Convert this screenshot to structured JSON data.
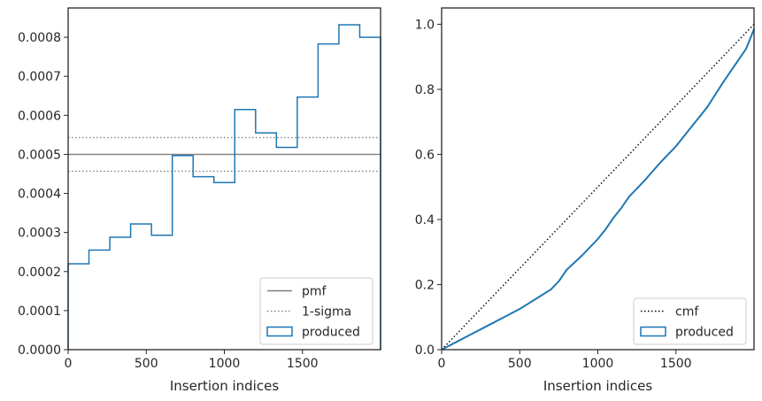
{
  "chart_data": [
    {
      "type": "line",
      "xlabel": "Insertion indices",
      "ylabel": "",
      "xlim": [
        0,
        2000
      ],
      "ylim": [
        0,
        0.000875
      ],
      "xticks": [
        {
          "v": 0,
          "label": "0"
        },
        {
          "v": 500,
          "label": "500"
        },
        {
          "v": 1000,
          "label": "1000"
        },
        {
          "v": 1500,
          "label": "1500"
        }
      ],
      "yticks": [
        {
          "v": 0,
          "label": "0.0000"
        },
        {
          "v": 0.0001,
          "label": "0.0001"
        },
        {
          "v": 0.0002,
          "label": "0.0002"
        },
        {
          "v": 0.0003,
          "label": "0.0003"
        },
        {
          "v": 0.0004,
          "label": "0.0004"
        },
        {
          "v": 0.0005,
          "label": "0.0005"
        },
        {
          "v": 0.0006,
          "label": "0.0006"
        },
        {
          "v": 0.0007,
          "label": "0.0007"
        },
        {
          "v": 0.0008,
          "label": "0.0008"
        }
      ],
      "pmf": 0.0005,
      "sigma_band": [
        0.000457,
        0.000543
      ],
      "histogram": {
        "name": "produced",
        "bin_edges": [
          0,
          133.3,
          266.7,
          400,
          533.3,
          666.7,
          800,
          933.3,
          1066.7,
          1200,
          1333.3,
          1466.7,
          1600,
          1733.3,
          1866.7,
          2000
        ],
        "values": [
          0.00022,
          0.000255,
          0.000288,
          0.000322,
          0.000293,
          0.000497,
          0.000443,
          0.000428,
          0.000615,
          0.000555,
          0.000518,
          0.000647,
          0.000783,
          0.000832,
          0.0008
        ]
      },
      "legend": {
        "position": "lower right",
        "entries": [
          {
            "label": "pmf",
            "style": "solid",
            "color": "#808080"
          },
          {
            "label": "1-sigma",
            "style": "dotted",
            "color": "#808080"
          },
          {
            "label": "produced",
            "style": "patch",
            "color": "#1f77b4"
          }
        ]
      }
    },
    {
      "type": "line",
      "xlabel": "Insertion indices",
      "ylabel": "",
      "xlim": [
        0,
        2000
      ],
      "ylim": [
        0,
        1.05
      ],
      "xticks": [
        {
          "v": 0,
          "label": "0"
        },
        {
          "v": 500,
          "label": "500"
        },
        {
          "v": 1000,
          "label": "1000"
        },
        {
          "v": 1500,
          "label": "1500"
        }
      ],
      "yticks": [
        {
          "v": 0,
          "label": "0.0"
        },
        {
          "v": 0.2,
          "label": "0.2"
        },
        {
          "v": 0.4,
          "label": "0.4"
        },
        {
          "v": 0.6,
          "label": "0.6"
        },
        {
          "v": 0.8,
          "label": "0.8"
        },
        {
          "v": 1.0,
          "label": "1.0"
        }
      ],
      "cmf": {
        "name": "cmf",
        "x": [
          0,
          2000
        ],
        "y": [
          0,
          1.0
        ]
      },
      "series": [
        {
          "name": "produced",
          "x": [
            0,
            100,
            200,
            300,
            400,
            500,
            600,
            700,
            750,
            800,
            900,
            1000,
            1050,
            1100,
            1150,
            1200,
            1300,
            1400,
            1500,
            1600,
            1700,
            1800,
            1900,
            1950,
            2000
          ],
          "y": [
            0,
            0.025,
            0.05,
            0.075,
            0.1,
            0.125,
            0.155,
            0.185,
            0.21,
            0.245,
            0.29,
            0.34,
            0.37,
            0.405,
            0.435,
            0.47,
            0.52,
            0.575,
            0.625,
            0.685,
            0.745,
            0.82,
            0.89,
            0.925,
            0.985
          ]
        }
      ],
      "legend": {
        "position": "lower right",
        "entries": [
          {
            "label": "cmf",
            "style": "dotted",
            "color": "#000000"
          },
          {
            "label": "produced",
            "style": "patch",
            "color": "#1f77b4"
          }
        ]
      }
    }
  ]
}
